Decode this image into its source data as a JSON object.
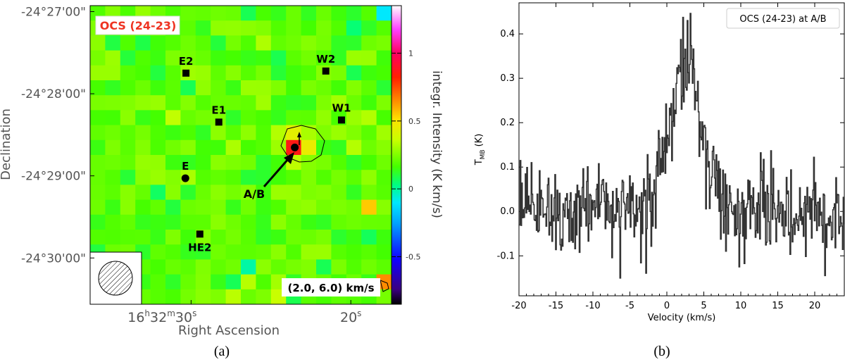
{
  "panels": {
    "a_caption": "(a)",
    "b_caption": "(b)"
  },
  "map": {
    "title": "OCS (24-23)",
    "title_color": "#ee3322",
    "xlabel": "Right Ascension",
    "ylabel": "Declination",
    "xticks": [
      {
        "label_h": "16",
        "label_m": "32",
        "label_s": "30",
        "pos": 0.335
      },
      {
        "label_s": "20",
        "pos": 0.865
      }
    ],
    "yticks": [
      {
        "label": "-24°27'00\"",
        "pos": 0.02
      },
      {
        "label": "-24°28'00\"",
        "pos": 0.295
      },
      {
        "label": "-24°29'00\"",
        "pos": 0.57
      },
      {
        "label": "-24°30'00\"",
        "pos": 0.845
      }
    ],
    "colorbar": {
      "label": "integr. Intensity (K km/s)",
      "ticks": [
        "1",
        "0.5",
        "0",
        "-0.5"
      ],
      "tick_values": [
        1.0,
        0.5,
        0.0,
        -0.5
      ],
      "vmin": -0.85,
      "vmax": 1.35
    },
    "velocity_range_label": "(2.0, 6.0) km/s",
    "sources": [
      {
        "name": "E2",
        "ra_frac": 0.318,
        "dec_frac": 0.226,
        "marker": "square"
      },
      {
        "name": "W2",
        "ra_frac": 0.782,
        "dec_frac": 0.219,
        "marker": "square"
      },
      {
        "name": "E1",
        "ra_frac": 0.427,
        "dec_frac": 0.39,
        "marker": "square"
      },
      {
        "name": "W1",
        "ra_frac": 0.834,
        "dec_frac": 0.383,
        "marker": "square"
      },
      {
        "name": "E",
        "ra_frac": 0.316,
        "dec_frac": 0.578,
        "marker": "circle"
      },
      {
        "name": "HE2",
        "ra_frac": 0.364,
        "dec_frac": 0.765,
        "marker": "square"
      },
      {
        "name": "A/B",
        "ra_frac": 0.679,
        "dec_frac": 0.475,
        "marker": "circle"
      }
    ],
    "arrow_label": "A/B"
  },
  "chart_data": [
    {
      "type": "heatmap",
      "title": "OCS (24-23)",
      "xlabel": "Right Ascension",
      "ylabel": "Declination",
      "unit": "K km/s",
      "background_value": 0.2,
      "peak_value": 0.85,
      "peak_source": "A/B",
      "contour_label": "A/B",
      "velocity_range": [
        2.0,
        6.0
      ]
    },
    {
      "type": "line",
      "title": "OCS (24-23) at A/B",
      "legend": "OCS (24-23) at A/B",
      "legend_position": "top-right",
      "xlabel": "Velocity (km/s)",
      "ylabel": "T_MB (K)",
      "ylabel_main": "T",
      "ylabel_sub": "MB",
      "ylabel_unit": "(K)",
      "xlim": [
        -20,
        24
      ],
      "ylim": [
        -0.19,
        0.47
      ],
      "xticks": [
        -20,
        -15,
        -10,
        -5,
        0,
        5,
        10,
        15,
        20
      ],
      "yticks": [
        -0.1,
        0.0,
        0.1,
        0.2,
        0.3,
        0.4
      ],
      "ytick_labels": [
        "-0.1",
        "0.0",
        "0.1",
        "0.2",
        "0.3",
        "0.4"
      ],
      "x_start": -20,
      "x_step": 0.1,
      "line_color": "#333333",
      "profile": {
        "type": "gaussian",
        "center": 2.6,
        "sigma": 2.1,
        "amplitude": 0.33,
        "noise": 0.05
      },
      "peak": {
        "x": 2.8,
        "y": 0.43
      },
      "minimum": {
        "x": -6.3,
        "y": -0.15
      }
    }
  ]
}
